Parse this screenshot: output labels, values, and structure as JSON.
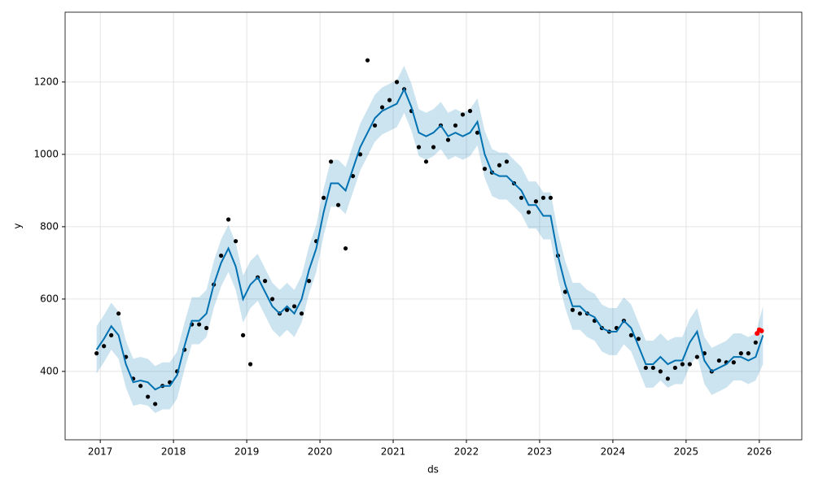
{
  "chart_data": {
    "type": "forecast",
    "x_label": "ds",
    "y_label": "y",
    "xlim": [
      2016.52,
      2026.58
    ],
    "ylim": [
      211,
      1393
    ],
    "xticks": [
      2017,
      2018,
      2019,
      2020,
      2021,
      2022,
      2023,
      2024,
      2025,
      2026
    ],
    "yticks": [
      400,
      600,
      800,
      1000,
      1200
    ],
    "grid": true,
    "x": [
      2016.95,
      2017.05,
      2017.15,
      2017.25,
      2017.35,
      2017.45,
      2017.55,
      2017.65,
      2017.75,
      2017.85,
      2017.95,
      2018.05,
      2018.15,
      2018.25,
      2018.35,
      2018.45,
      2018.55,
      2018.65,
      2018.75,
      2018.85,
      2018.95,
      2019.05,
      2019.15,
      2019.25,
      2019.35,
      2019.45,
      2019.55,
      2019.65,
      2019.75,
      2019.85,
      2019.95,
      2020.05,
      2020.15,
      2020.25,
      2020.35,
      2020.45,
      2020.55,
      2020.65,
      2020.75,
      2020.85,
      2020.95,
      2021.05,
      2021.15,
      2021.25,
      2021.35,
      2021.45,
      2021.55,
      2021.65,
      2021.75,
      2021.85,
      2021.95,
      2022.05,
      2022.15,
      2022.25,
      2022.35,
      2022.45,
      2022.55,
      2022.65,
      2022.75,
      2022.85,
      2022.95,
      2023.05,
      2023.15,
      2023.25,
      2023.35,
      2023.45,
      2023.55,
      2023.65,
      2023.75,
      2023.85,
      2023.95,
      2024.05,
      2024.15,
      2024.25,
      2024.35,
      2024.45,
      2024.55,
      2024.65,
      2024.75,
      2024.85,
      2024.95,
      2025.05,
      2025.15,
      2025.25,
      2025.35,
      2025.45,
      2025.55,
      2025.65,
      2025.75,
      2025.85,
      2025.95,
      2026.05
    ],
    "observed": {
      "color": "#000000",
      "values": [
        450,
        470,
        500,
        560,
        440,
        380,
        360,
        330,
        310,
        360,
        370,
        400,
        460,
        530,
        530,
        520,
        640,
        720,
        820,
        760,
        500,
        420,
        660,
        650,
        600,
        560,
        570,
        580,
        560,
        650,
        760,
        880,
        980,
        860,
        740,
        940,
        1000,
        1260,
        1080,
        1130,
        1150,
        1200,
        1180,
        1120,
        1020,
        980,
        1020,
        1080,
        1040,
        1080,
        1110,
        1120,
        1060,
        960,
        950,
        970,
        980,
        920,
        880,
        840,
        870,
        880,
        880,
        720,
        620,
        570,
        560,
        560,
        540,
        520,
        510,
        520,
        540,
        500,
        490,
        410,
        410,
        400,
        380,
        410,
        420,
        420,
        440,
        450,
        400,
        430,
        425,
        425,
        450,
        450,
        480,
        null
      ]
    },
    "yhat": {
      "color": "#0072B2",
      "values": [
        460,
        490,
        525,
        500,
        420,
        370,
        375,
        370,
        350,
        360,
        360,
        390,
        470,
        540,
        540,
        560,
        640,
        700,
        740,
        690,
        600,
        640,
        660,
        620,
        580,
        560,
        580,
        560,
        600,
        680,
        740,
        840,
        920,
        920,
        900,
        960,
        1020,
        1060,
        1100,
        1120,
        1130,
        1140,
        1180,
        1130,
        1060,
        1050,
        1060,
        1080,
        1050,
        1060,
        1050,
        1060,
        1090,
        1000,
        950,
        940,
        940,
        920,
        900,
        860,
        860,
        830,
        830,
        720,
        640,
        580,
        580,
        560,
        550,
        520,
        510,
        510,
        540,
        520,
        470,
        420,
        420,
        440,
        420,
        430,
        430,
        480,
        510,
        430,
        400,
        410,
        420,
        440,
        440,
        430,
        440,
        500
      ]
    },
    "yhat_lower": [
      395,
      425,
      460,
      435,
      355,
      305,
      310,
      305,
      285,
      295,
      295,
      325,
      405,
      475,
      475,
      495,
      575,
      635,
      675,
      625,
      535,
      575,
      595,
      555,
      515,
      495,
      515,
      495,
      535,
      615,
      675,
      775,
      855,
      855,
      835,
      895,
      955,
      995,
      1035,
      1055,
      1065,
      1075,
      1115,
      1065,
      995,
      985,
      995,
      1015,
      985,
      995,
      985,
      995,
      1025,
      935,
      885,
      875,
      875,
      855,
      835,
      795,
      795,
      765,
      765,
      655,
      575,
      515,
      515,
      495,
      485,
      455,
      445,
      445,
      475,
      455,
      405,
      355,
      355,
      375,
      355,
      365,
      365,
      415,
      445,
      365,
      335,
      345,
      355,
      375,
      375,
      365,
      375,
      420
    ],
    "yhat_upper": [
      525,
      555,
      590,
      565,
      485,
      435,
      440,
      435,
      415,
      425,
      425,
      455,
      535,
      605,
      605,
      625,
      705,
      765,
      805,
      755,
      665,
      705,
      725,
      685,
      645,
      625,
      645,
      625,
      665,
      745,
      805,
      905,
      985,
      985,
      965,
      1025,
      1085,
      1125,
      1165,
      1185,
      1195,
      1205,
      1245,
      1195,
      1125,
      1115,
      1125,
      1145,
      1115,
      1125,
      1115,
      1125,
      1155,
      1065,
      1015,
      1005,
      1005,
      985,
      965,
      925,
      925,
      895,
      895,
      785,
      705,
      645,
      645,
      625,
      615,
      585,
      575,
      575,
      605,
      585,
      535,
      485,
      485,
      505,
      485,
      495,
      495,
      545,
      575,
      495,
      465,
      475,
      485,
      505,
      505,
      495,
      505,
      580
    ],
    "band_color": "#0072B2",
    "recent": {
      "color": "#ff0000",
      "x": [
        2025.97,
        2026.0,
        2026.03
      ],
      "values": [
        505,
        515,
        512
      ]
    }
  }
}
